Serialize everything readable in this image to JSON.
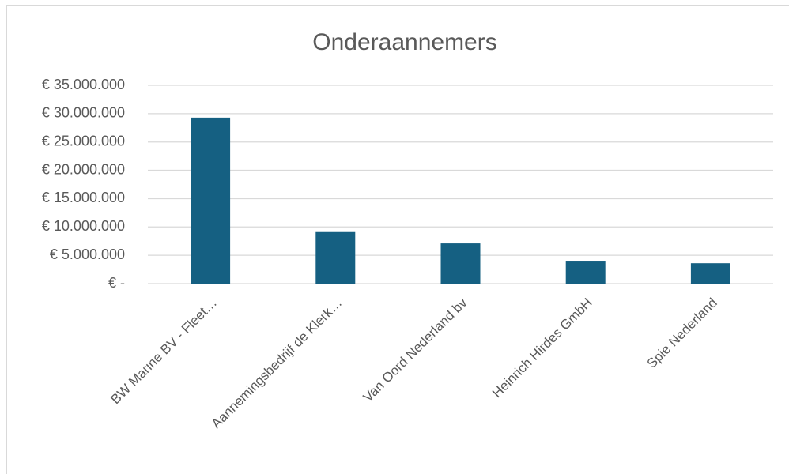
{
  "chart_data": {
    "type": "bar",
    "title": "Onderaannemers",
    "categories": [
      "BW Marine BV - Fleet…",
      "Aannemingsbedrijf de Klerk…",
      "Van Oord Nederland bv",
      "Heinrich Hirdes GmbH",
      "Spie Nederland"
    ],
    "values": [
      29300000,
      9100000,
      7100000,
      3900000,
      3600000
    ],
    "color": "#156082",
    "ylim": [
      0,
      35000000
    ],
    "yticks": [
      {
        "value": 0,
        "label": "€ -"
      },
      {
        "value": 5000000,
        "label": "€ 5.000.000"
      },
      {
        "value": 10000000,
        "label": "€ 10.000.000"
      },
      {
        "value": 15000000,
        "label": "€ 15.000.000"
      },
      {
        "value": 20000000,
        "label": "€ 20.000.000"
      },
      {
        "value": 25000000,
        "label": "€ 25.000.000"
      },
      {
        "value": 30000000,
        "label": "€ 30.000.000"
      },
      {
        "value": 35000000,
        "label": "€ 35.000.000"
      }
    ],
    "grid": true
  }
}
